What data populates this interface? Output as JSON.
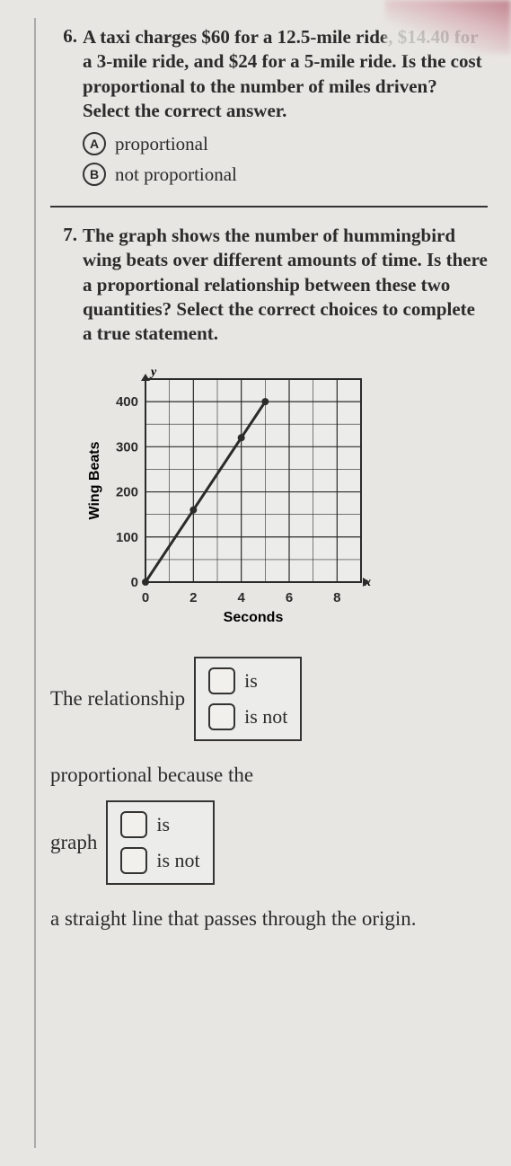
{
  "q6": {
    "number": "6.",
    "text": "A taxi charges $60 for a 12.5-mile ride, $14.40 for a 3-mile ride, and $24 for a 5-mile ride. Is the cost proportional to the number of miles driven? Select the correct answer.",
    "choices": [
      {
        "letter": "A",
        "text": "proportional"
      },
      {
        "letter": "B",
        "text": "not proportional"
      }
    ]
  },
  "q7": {
    "number": "7.",
    "text": "The graph shows the number of hummingbird wing beats over different amounts of time. Is there a proportional relationship between these two quantities? Select the correct choices to complete a true statement.",
    "chart": {
      "type": "line",
      "x_label": "Seconds",
      "y_label": "Wing Beats",
      "x_var": "x",
      "y_var": "y",
      "xlim": [
        0,
        9
      ],
      "ylim": [
        0,
        450
      ],
      "xtick_step": 2,
      "xtick_labels": [
        "0",
        "2",
        "4",
        "6",
        "8"
      ],
      "ytick_step": 100,
      "ytick_labels": [
        "0",
        "100",
        "200",
        "300",
        "400"
      ],
      "minor_grid": true,
      "points": [
        [
          0,
          0
        ],
        [
          2,
          160
        ],
        [
          4,
          320
        ],
        [
          5,
          400
        ]
      ],
      "line_color": "#2b2b2b",
      "line_width": 3,
      "marker": "circle",
      "marker_size": 8,
      "marker_fill": "#2b2b2b",
      "grid_color": "#2b2b2b",
      "grid_width": 1,
      "background": "#ececea",
      "label_fontsize": 16,
      "tick_fontsize": 15,
      "aspect_w": 250,
      "aspect_h": 240
    },
    "sentence": {
      "part1": "The relationship",
      "blank1": {
        "opt1": "is",
        "opt2": "is not"
      },
      "part2": "proportional because the",
      "part3": "graph",
      "blank2": {
        "opt1": "is",
        "opt2": "is not"
      },
      "part4": "a straight line that passes through the origin."
    }
  }
}
